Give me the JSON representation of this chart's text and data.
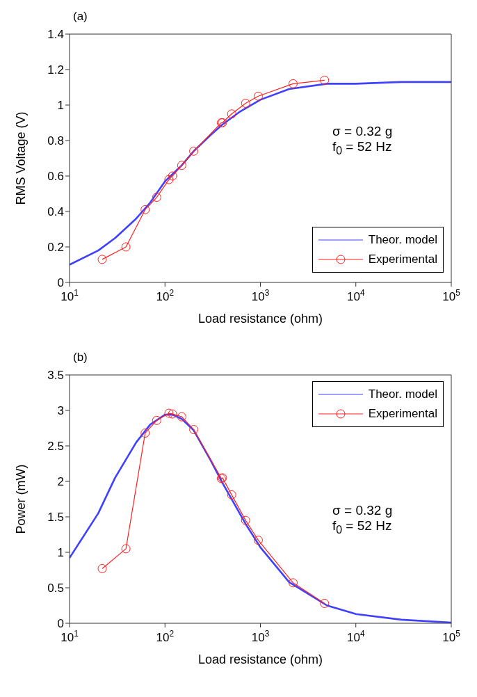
{
  "chart_data": [
    {
      "type": "line",
      "title": "(a)",
      "xlabel": "Load resistance (ohm)",
      "ylabel": "RMS Voltage (V)",
      "log": "x",
      "xlim": [
        10,
        100000
      ],
      "xticks": [
        {
          "value": 10,
          "label": "10$^{1}$"
        },
        {
          "value": 100,
          "label": "10$^{2}$"
        },
        {
          "value": 1000,
          "label": "10$^{3}$"
        },
        {
          "value": 10000,
          "label": "10$^{4}$"
        },
        {
          "value": 100000,
          "label": "10$^{5}$"
        }
      ],
      "ylim": [
        0,
        1.4
      ],
      "yticks": [
        0,
        0.2,
        0.4,
        0.6,
        0.8,
        1,
        1.2,
        1.4
      ],
      "grid": false,
      "legend": "bottom right",
      "annotations": [
        "σ = 0.32 g",
        "f$_{0}$ = 52 Hz"
      ],
      "series": [
        {
          "name": "Theor. model",
          "color": "#4040ff",
          "marker": "none",
          "x": [
            10,
            20,
            30,
            50,
            70,
            100,
            150,
            200,
            300,
            400,
            600,
            1000,
            2000,
            5000,
            10000,
            30000,
            100000
          ],
          "values": [
            0.1,
            0.18,
            0.25,
            0.36,
            0.45,
            0.57,
            0.66,
            0.74,
            0.83,
            0.89,
            0.96,
            1.03,
            1.09,
            1.12,
            1.12,
            1.13,
            1.13
          ]
        },
        {
          "name": "Experimental",
          "color": "#ff2020",
          "marker": "circle",
          "x": [
            22,
            39,
            62,
            82,
            110,
            120,
            150,
            200,
            390,
            400,
            500,
            700,
            950,
            2200,
            4700
          ],
          "values": [
            0.13,
            0.2,
            0.41,
            0.48,
            0.58,
            0.6,
            0.66,
            0.74,
            0.9,
            0.9,
            0.95,
            1.01,
            1.05,
            1.12,
            1.14
          ]
        }
      ]
    },
    {
      "type": "line",
      "title": "(b)",
      "xlabel": "Load resistance (ohm)",
      "ylabel": "Power  (mW)",
      "log": "x",
      "xlim": [
        10,
        100000
      ],
      "xticks": [
        {
          "value": 10,
          "label": "10$^{1}$"
        },
        {
          "value": 100,
          "label": "10$^{2}$"
        },
        {
          "value": 1000,
          "label": "10$^{3}$"
        },
        {
          "value": 10000,
          "label": "10$^{4}$"
        },
        {
          "value": 100000,
          "label": "10$^{5}$"
        }
      ],
      "ylim": [
        0,
        3.5
      ],
      "yticks": [
        0,
        0.5,
        1,
        1.5,
        2,
        2.5,
        3,
        3.5
      ],
      "grid": false,
      "legend": "top right",
      "annotations": [
        "σ = 0.32 g",
        "f$_{0}$ = 52 Hz"
      ],
      "series": [
        {
          "name": "Theor. model",
          "color": "#4040ff",
          "marker": "none",
          "x": [
            10,
            20,
            30,
            50,
            70,
            100,
            120,
            150,
            200,
            300,
            400,
            700,
            1000,
            2000,
            5000,
            10000,
            30000,
            100000
          ],
          "values": [
            0.92,
            1.55,
            2.05,
            2.55,
            2.8,
            2.94,
            2.94,
            2.88,
            2.72,
            2.3,
            1.98,
            1.4,
            1.07,
            0.58,
            0.25,
            0.13,
            0.05,
            0.01
          ]
        },
        {
          "name": "Experimental",
          "color": "#ff2020",
          "marker": "circle",
          "x": [
            22,
            39,
            62,
            82,
            110,
            120,
            150,
            200,
            390,
            400,
            500,
            700,
            950,
            2200,
            4700
          ],
          "values": [
            0.77,
            1.05,
            2.68,
            2.86,
            2.96,
            2.95,
            2.91,
            2.73,
            2.04,
            2.05,
            1.81,
            1.45,
            1.17,
            0.57,
            0.28
          ]
        }
      ]
    }
  ]
}
